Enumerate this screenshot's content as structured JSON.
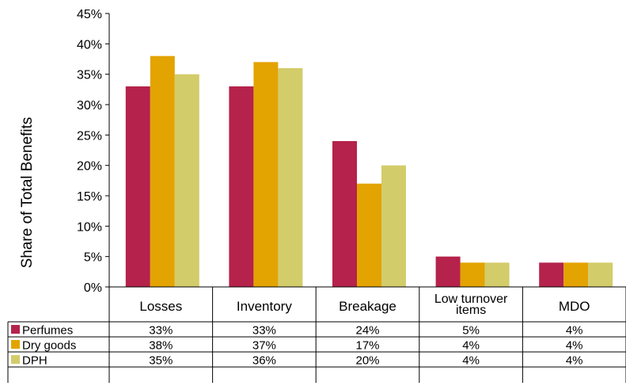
{
  "chart_data": {
    "type": "bar",
    "ylabel": "Share of Total Benefits",
    "ylim": [
      0,
      45
    ],
    "ytick_step": 5,
    "ytick_labels": [
      "0%",
      "5%",
      "10%",
      "15%",
      "20%",
      "25%",
      "30%",
      "35%",
      "40%",
      "45%"
    ],
    "categories": [
      "Losses",
      "Inventory",
      "Breakage",
      "Low turnover items",
      "MDO"
    ],
    "category_lines": [
      [
        "Losses"
      ],
      [
        "Inventory"
      ],
      [
        "Breakage"
      ],
      [
        "Low turnover",
        "items"
      ],
      [
        "MDO"
      ]
    ],
    "series": [
      {
        "name": "Perfumes",
        "color": "#b5224b",
        "values": [
          33,
          33,
          24,
          5,
          4
        ],
        "labels": [
          "33%",
          "33%",
          "24%",
          "5%",
          "4%"
        ]
      },
      {
        "name": "Dry goods",
        "color": "#e3a300",
        "values": [
          38,
          37,
          17,
          4,
          4
        ],
        "labels": [
          "38%",
          "37%",
          "17%",
          "4%",
          "4%"
        ]
      },
      {
        "name": "DPH",
        "color": "#d3cc6a",
        "values": [
          35,
          36,
          20,
          4,
          4
        ],
        "labels": [
          "35%",
          "36%",
          "20%",
          "4%",
          "4%"
        ]
      }
    ],
    "grid": false,
    "legend": "data-table-below"
  }
}
